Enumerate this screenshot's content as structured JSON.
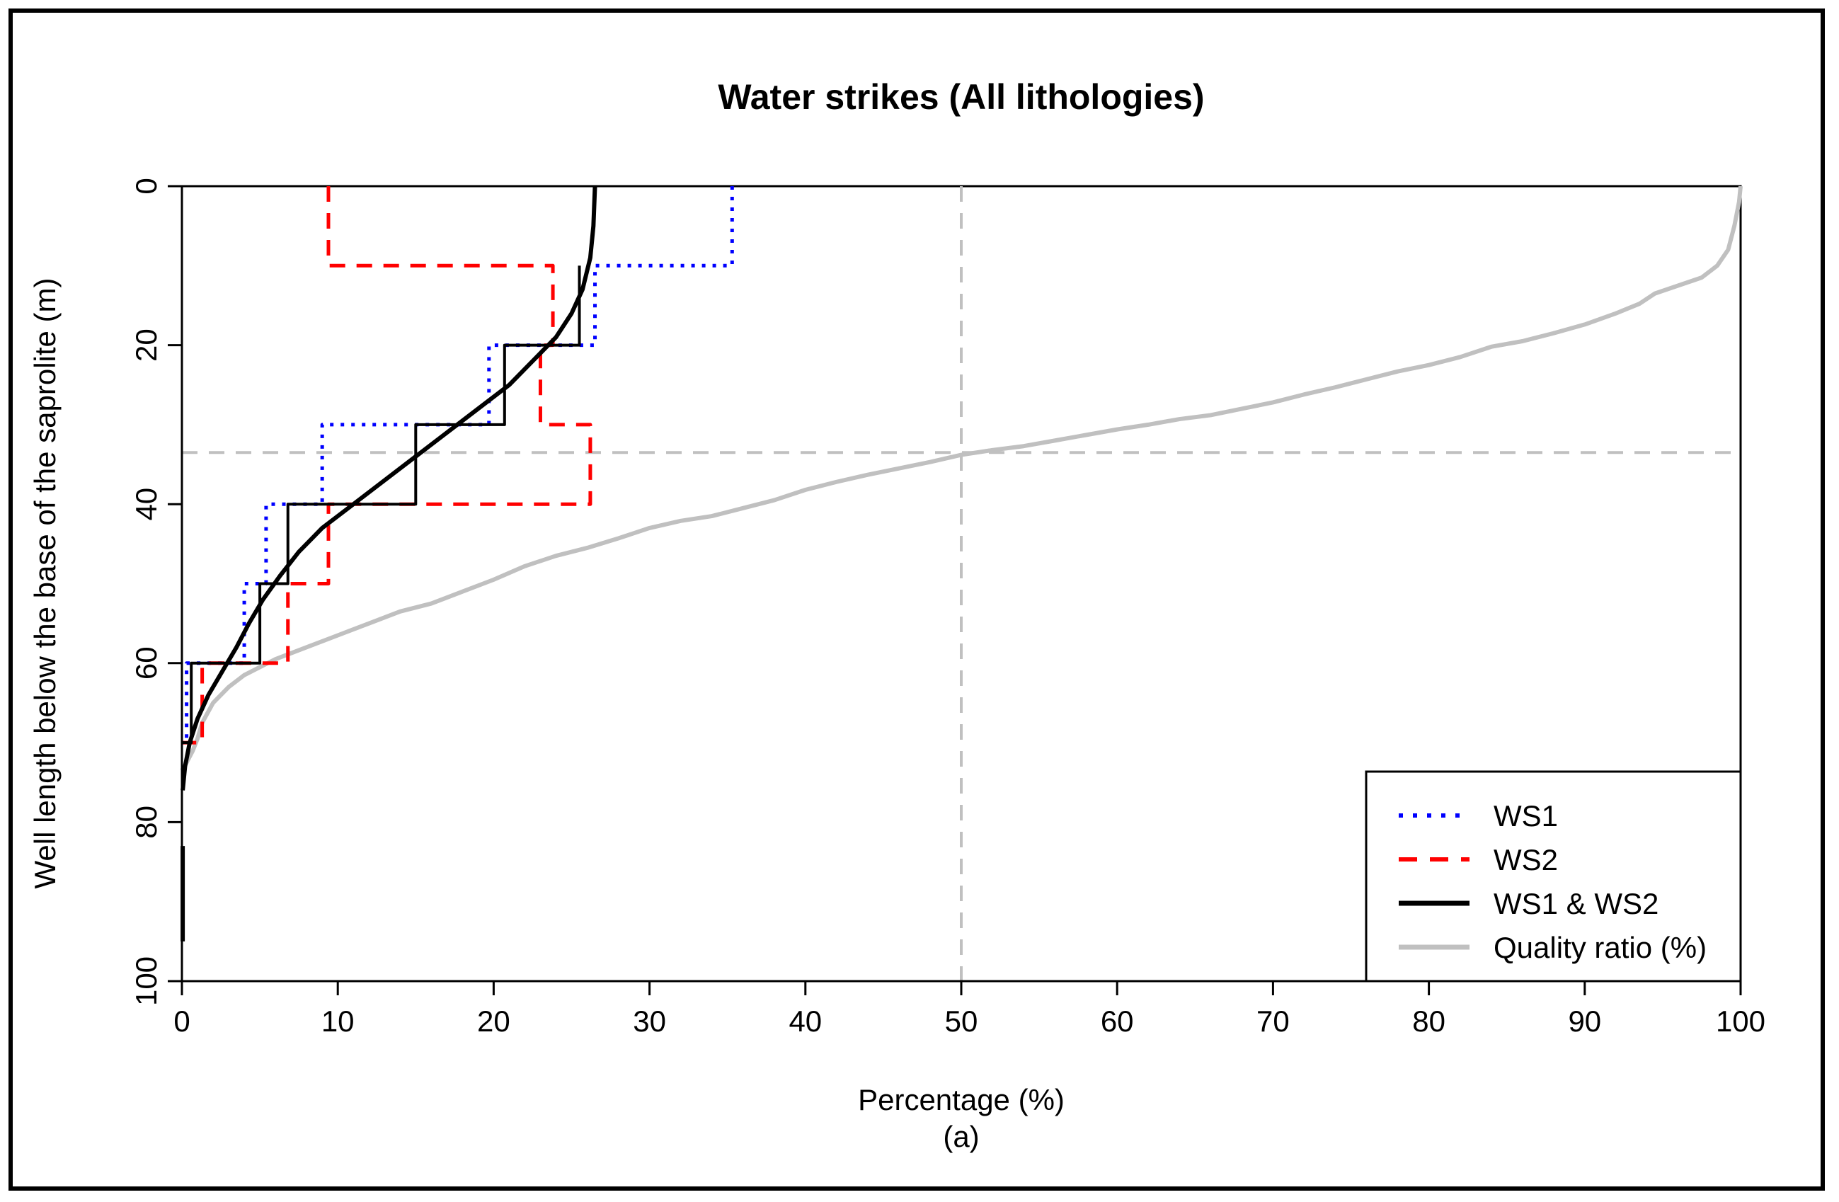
{
  "chart_data": {
    "type": "line",
    "title": "Water strikes (All lithologies)",
    "xlabel": "Percentage (%)",
    "sublabel": "(a)",
    "ylabel": "Well length below the base of the saprolite (m)",
    "xlim": [
      0,
      100
    ],
    "ylim": [
      100,
      0
    ],
    "x_ticks": [
      "0",
      "10",
      "20",
      "30",
      "40",
      "50",
      "60",
      "70",
      "80",
      "90",
      "100"
    ],
    "y_ticks": [
      "0",
      "20",
      "40",
      "60",
      "80",
      "100"
    ],
    "legend_position": "bottom-right",
    "reference_lines": {
      "vertical_x": 50,
      "horizontal_y": 33.5
    },
    "colors": {
      "ws1": "#0000ff",
      "ws2": "#ff0000",
      "ws12": "#000000",
      "quality": "#c0c0c0",
      "reference": "#c0c0c0"
    },
    "series": [
      {
        "name": "WS1",
        "style": "dotted",
        "kind": "step",
        "bins": [
          [
            0,
            10
          ],
          [
            10,
            20
          ],
          [
            20,
            30
          ],
          [
            30,
            40
          ],
          [
            40,
            50
          ],
          [
            50,
            60
          ],
          [
            60,
            70
          ]
        ],
        "values": [
          35.3,
          26.5,
          19.7,
          9.0,
          5.4,
          4.0,
          0.3
        ]
      },
      {
        "name": "WS2",
        "style": "dashed",
        "kind": "step",
        "bins": [
          [
            0,
            10
          ],
          [
            10,
            20
          ],
          [
            20,
            30
          ],
          [
            30,
            40
          ],
          [
            40,
            50
          ],
          [
            50,
            60
          ],
          [
            60,
            70
          ]
        ],
        "values": [
          9.4,
          23.8,
          23.0,
          26.2,
          9.4,
          6.8,
          1.3
        ]
      },
      {
        "name": "WS1 & WS2",
        "style": "solid",
        "kind": "step",
        "bins": [
          [
            10,
            20
          ],
          [
            20,
            30
          ],
          [
            30,
            40
          ],
          [
            40,
            50
          ],
          [
            50,
            60
          ],
          [
            60,
            70
          ]
        ],
        "values": [
          25.5,
          20.7,
          15.0,
          6.8,
          5.0,
          0.6
        ]
      },
      {
        "name": "WS1 & WS2 (fitted)",
        "style": "solid-thick",
        "kind": "curve",
        "legend": false,
        "points": [
          [
            26.5,
            0
          ],
          [
            26.4,
            5
          ],
          [
            26.2,
            9
          ],
          [
            25.7,
            13
          ],
          [
            25.0,
            16
          ],
          [
            24.0,
            19
          ],
          [
            22.5,
            22
          ],
          [
            21.0,
            25
          ],
          [
            19.0,
            28
          ],
          [
            17.0,
            31
          ],
          [
            15.0,
            34
          ],
          [
            13.0,
            37
          ],
          [
            11.0,
            40
          ],
          [
            9.0,
            43
          ],
          [
            7.5,
            46
          ],
          [
            6.3,
            49
          ],
          [
            5.2,
            52
          ],
          [
            4.3,
            55
          ],
          [
            3.5,
            58
          ],
          [
            2.6,
            61
          ],
          [
            1.7,
            64
          ],
          [
            1.0,
            67
          ],
          [
            0.5,
            70
          ],
          [
            0.2,
            73
          ],
          [
            0.05,
            76
          ]
        ]
      },
      {
        "name": "WS1 & WS2 (tail)",
        "style": "solid-thick",
        "kind": "segment",
        "legend": false,
        "points": [
          [
            0.05,
            83
          ],
          [
            0.05,
            95
          ]
        ]
      },
      {
        "name": "Quality ratio (%)",
        "style": "solid-thick",
        "kind": "curve",
        "points": [
          [
            100,
            0
          ],
          [
            99.9,
            2
          ],
          [
            99.6,
            5
          ],
          [
            99.2,
            8
          ],
          [
            98.5,
            10
          ],
          [
            97.5,
            11.5
          ],
          [
            96,
            12.5
          ],
          [
            94.5,
            13.5
          ],
          [
            93.5,
            14.8
          ],
          [
            92,
            16
          ],
          [
            90,
            17.4
          ],
          [
            88,
            18.5
          ],
          [
            86,
            19.5
          ],
          [
            84,
            20.2
          ],
          [
            82,
            21.5
          ],
          [
            80,
            22.5
          ],
          [
            78,
            23.3
          ],
          [
            76,
            24.3
          ],
          [
            74,
            25.3
          ],
          [
            72,
            26.2
          ],
          [
            70,
            27.2
          ],
          [
            68,
            28
          ],
          [
            66,
            28.8
          ],
          [
            64,
            29.3
          ],
          [
            62,
            30
          ],
          [
            60,
            30.6
          ],
          [
            58,
            31.3
          ],
          [
            56,
            32
          ],
          [
            54,
            32.7
          ],
          [
            52,
            33.2
          ],
          [
            50,
            33.8
          ],
          [
            48,
            34.7
          ],
          [
            46,
            35.5
          ],
          [
            44,
            36.3
          ],
          [
            42,
            37.2
          ],
          [
            40,
            38.2
          ],
          [
            38,
            39.5
          ],
          [
            36,
            40.5
          ],
          [
            34,
            41.5
          ],
          [
            32,
            42.1
          ],
          [
            30,
            43
          ],
          [
            28,
            44.3
          ],
          [
            26,
            45.5
          ],
          [
            24,
            46.5
          ],
          [
            22,
            47.8
          ],
          [
            20,
            49.5
          ],
          [
            18,
            51
          ],
          [
            16,
            52.5
          ],
          [
            14,
            53.5
          ],
          [
            12,
            55
          ],
          [
            10,
            56.5
          ],
          [
            8,
            58
          ],
          [
            6,
            59.5
          ],
          [
            5,
            60.5
          ],
          [
            4,
            61.5
          ],
          [
            3,
            63
          ],
          [
            2,
            65
          ],
          [
            1.3,
            67.5
          ],
          [
            1,
            69.5
          ],
          [
            0.7,
            71
          ],
          [
            0.3,
            72.5
          ],
          [
            0,
            73.5
          ]
        ]
      }
    ]
  }
}
